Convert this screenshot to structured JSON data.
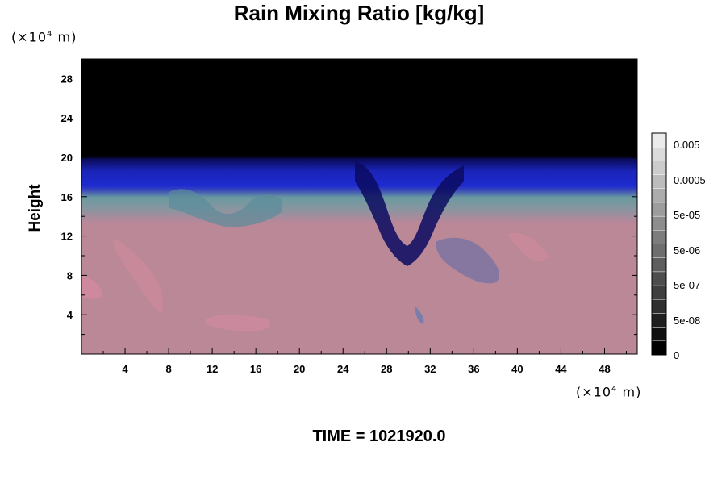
{
  "chart_data": {
    "type": "heatmap",
    "title": "Rain Mixing Ratio [kg/kg]",
    "ylabel": "Height",
    "xlabel": "",
    "x_unit": {
      "prefix": "(×10",
      "exp": "4",
      "suffix": " m)"
    },
    "y_unit": {
      "prefix": "(×10",
      "exp": "4",
      "suffix": " m)"
    },
    "xlim": [
      0,
      51
    ],
    "ylim": [
      0,
      30
    ],
    "x_ticks": [
      4,
      8,
      12,
      16,
      20,
      24,
      28,
      32,
      36,
      40,
      44,
      48
    ],
    "y_ticks": [
      4,
      8,
      12,
      16,
      20,
      24,
      28
    ],
    "colorbar": {
      "scale": "log",
      "tick_labels": [
        "0",
        "5e-08",
        "5e-07",
        "5e-06",
        "5e-05",
        "0.0005",
        "0.005"
      ],
      "levels": 16
    },
    "field_description_layers": {
      "upper_empty_above_height": 20,
      "blue_layer_from_height": 16,
      "blue_layer_to_height": 20,
      "mixed_layer_from_height": 13.5,
      "mixed_layer_to_height": 16,
      "lower_pink_below_height": 13.5
    },
    "colors": {
      "upper": "#000000",
      "blue_dark": "#0a0a6e",
      "blue": "#1a22c8",
      "teal": "#6a9aa0",
      "pink": "#bb8898",
      "pink_light": "#cc8a9c"
    }
  },
  "footer": {
    "time_label": "TIME = 1021920.0"
  }
}
